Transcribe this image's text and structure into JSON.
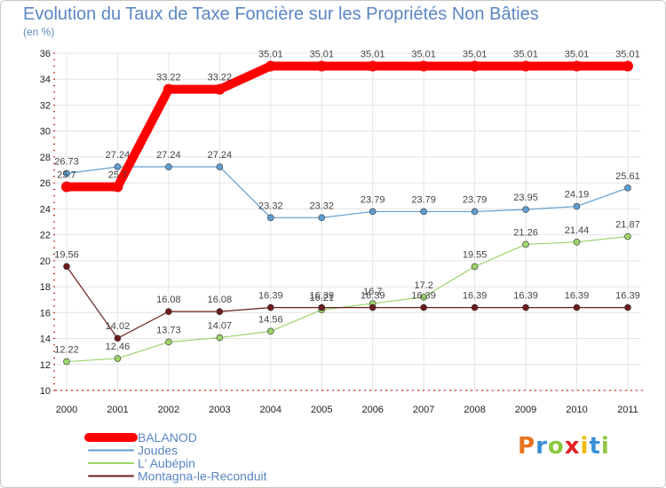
{
  "chart_data": {
    "type": "line",
    "title": "Evolution du Taux de Taxe Foncière sur les Propriétés Non Bâties",
    "ylabel": "(en %)",
    "xlabel": "",
    "ylim": [
      10,
      36
    ],
    "yticks": [
      10,
      12,
      14,
      16,
      18,
      20,
      22,
      24,
      26,
      28,
      30,
      32,
      34,
      36
    ],
    "categories": [
      "2000",
      "2001",
      "2002",
      "2003",
      "2004",
      "2005",
      "2006",
      "2007",
      "2008",
      "2009",
      "2010",
      "2011"
    ],
    "series": [
      {
        "name": "BALANOD",
        "color": "#ff0000",
        "values": [
          25.7,
          25.7,
          33.22,
          33.22,
          35.01,
          35.01,
          35.01,
          35.01,
          35.01,
          35.01,
          35.01,
          35.01
        ],
        "labels": [
          "25.7",
          "25.7",
          "33.22",
          "33.22",
          "35.01",
          "35.01",
          "35.01",
          "35.01",
          "35.01",
          "35.01",
          "35.01",
          "35.01"
        ]
      },
      {
        "name": "Joudes",
        "color": "#5f9ed1",
        "values": [
          26.73,
          27.24,
          27.24,
          27.24,
          23.32,
          23.32,
          23.79,
          23.79,
          23.79,
          23.95,
          24.19,
          25.61
        ],
        "labels": [
          "26.73",
          "27.24",
          "27.24",
          "27.24",
          "23.32",
          "23.32",
          "23.79",
          "23.79",
          "23.79",
          "23.95",
          "24.19",
          "25.61"
        ]
      },
      {
        "name": "L' Aubépin",
        "color": "#9bd46a",
        "values": [
          12.22,
          12.46,
          13.73,
          14.07,
          14.56,
          16.21,
          16.7,
          17.2,
          19.55,
          21.26,
          21.44,
          21.87
        ],
        "labels": [
          "12.22",
          "12.46",
          "13.73",
          "14.07",
          "14.56",
          "16.21",
          "16.7",
          "17.2",
          "19.55",
          "21.26",
          "21.44",
          "21.87"
        ]
      },
      {
        "name": "Montagna-le-Reconduit",
        "color": "#6b1c1c",
        "values": [
          19.56,
          14.02,
          16.08,
          16.08,
          16.39,
          16.39,
          16.39,
          16.39,
          16.39,
          16.39,
          16.39,
          16.39
        ],
        "labels": [
          "19.56",
          "14.02",
          "16.08",
          "16.08",
          "16.39",
          "16.39",
          "16.39",
          "16.39",
          "16.39",
          "16.39",
          "16.39",
          "16.39"
        ]
      }
    ],
    "legend_position": "bottom-left"
  },
  "logo_text": "Proxiti"
}
